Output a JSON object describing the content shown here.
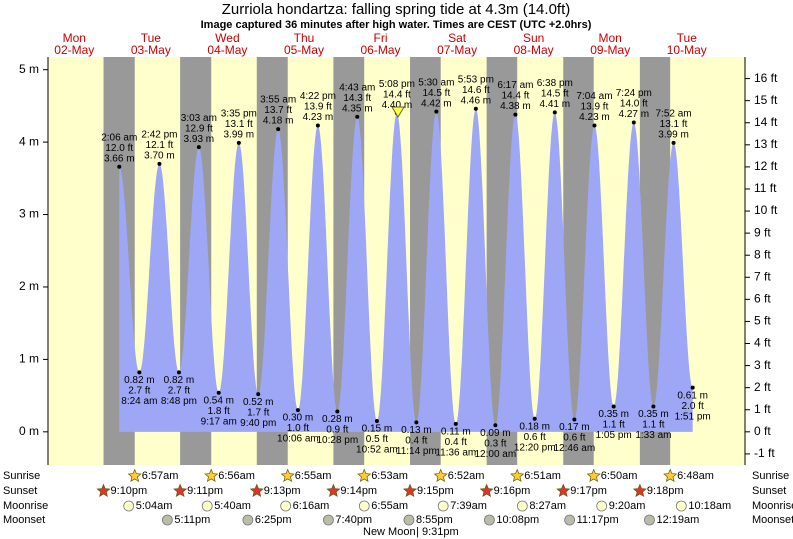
{
  "chart_data": {
    "type": "tide",
    "title": "Zurriola hondartza: falling  spring tide at 4.3m (14.0ft)",
    "subtitle": "Image captured 36 minutes after high water. Times are CEST (UTC +2.0hrs)",
    "ylim": [
      -0.458,
      5.175
    ],
    "yticks": [
      {
        "value": 0,
        "label": "0 m"
      },
      {
        "value": 1,
        "label": "1 m"
      },
      {
        "value": 2,
        "label": "2 m"
      },
      {
        "value": 3,
        "label": "3 m"
      },
      {
        "value": 4,
        "label": "4 m"
      },
      {
        "value": 5,
        "label": "5 m"
      }
    ],
    "y2lim": [
      -1.503,
      16.978
    ],
    "y2ticks": [
      {
        "value": -1,
        "label": "-1 ft"
      },
      {
        "value": 0,
        "label": "0 ft"
      },
      {
        "value": 1,
        "label": "1 ft"
      },
      {
        "value": 2,
        "label": "2 ft"
      },
      {
        "value": 3,
        "label": "3 ft"
      },
      {
        "value": 4,
        "label": "4 ft"
      },
      {
        "value": 5,
        "label": "5 ft"
      },
      {
        "value": 6,
        "label": "6 ft"
      },
      {
        "value": 7,
        "label": "7 ft"
      },
      {
        "value": 8,
        "label": "8 ft"
      },
      {
        "value": 9,
        "label": "9 ft"
      },
      {
        "value": 10,
        "label": "10 ft"
      },
      {
        "value": 11,
        "label": "11 ft"
      },
      {
        "value": 12,
        "label": "12 ft"
      },
      {
        "value": 13,
        "label": "13 ft"
      },
      {
        "value": 14,
        "label": "14 ft"
      },
      {
        "value": 15,
        "label": "15 ft"
      },
      {
        "value": 16,
        "label": "16 ft"
      }
    ],
    "row_labels": [
      "Sunrise",
      "Sunset",
      "Moonrise",
      "Moonset"
    ],
    "moon_phase": {
      "label": "New Moon",
      "time": "9:31pm"
    },
    "days": [
      {
        "name": "Mon",
        "date": "02-May",
        "tides": [],
        "sunset": "9:10pm"
      },
      {
        "name": "Tue",
        "date": "03-May",
        "tides": [
          {
            "time": "2:06 am",
            "height": 3.66,
            "height_label": "3.66 m",
            "feet_label": "12.0 ft"
          },
          {
            "time": "8:24 am",
            "height": 0.82,
            "height_label": "0.82 m",
            "feet_label": "2.7 ft"
          },
          {
            "time": "2:42 pm",
            "height": 3.7,
            "height_label": "3.70 m",
            "feet_label": "12.1 ft"
          },
          {
            "time": "8:48 pm",
            "height": 0.82,
            "height_label": "0.82 m",
            "feet_label": "2.7 ft"
          }
        ],
        "sunrise": "6:57am",
        "sunset": "9:11pm",
        "moonrise": "5:04am",
        "moonset": "5:11pm"
      },
      {
        "name": "Wed",
        "date": "04-May",
        "tides": [
          {
            "time": "3:03 am",
            "height": 3.93,
            "height_label": "3.93 m",
            "feet_label": "12.9 ft"
          },
          {
            "time": "9:17 am",
            "height": 0.54,
            "height_label": "0.54 m",
            "feet_label": "1.8 ft"
          },
          {
            "time": "3:35 pm",
            "height": 3.99,
            "height_label": "3.99 m",
            "feet_label": "13.1 ft"
          },
          {
            "time": "9:40 pm",
            "height": 0.52,
            "height_label": "0.52 m",
            "feet_label": "1.7 ft"
          }
        ],
        "sunrise": "6:56am",
        "sunset": "9:13pm",
        "moonrise": "5:40am",
        "moonset": "6:25pm"
      },
      {
        "name": "Thu",
        "date": "05-May",
        "tides": [
          {
            "time": "3:55 am",
            "height": 4.18,
            "height_label": "4.18 m",
            "feet_label": "13.7 ft"
          },
          {
            "time": "10:06 am",
            "height": 0.3,
            "height_label": "0.30 m",
            "feet_label": "1.0 ft"
          },
          {
            "time": "4:22 pm",
            "height": 4.23,
            "height_label": "4.23 m",
            "feet_label": "13.9 ft"
          },
          {
            "time": "10:28 pm",
            "height": 0.28,
            "height_label": "0.28 m",
            "feet_label": "0.9 ft"
          }
        ],
        "sunrise": "6:55am",
        "sunset": "9:14pm",
        "moonrise": "6:16am",
        "moonset": "7:40pm"
      },
      {
        "name": "Fri",
        "date": "06-May",
        "tides": [
          {
            "time": "4:43 am",
            "height": 4.35,
            "height_label": "4.35 m",
            "feet_label": "14.3 ft"
          },
          {
            "time": "10:52 am",
            "height": 0.15,
            "height_label": "0.15 m",
            "feet_label": "0.5 ft"
          },
          {
            "time": "5:08 pm",
            "height": 4.4,
            "height_label": "4.40 m",
            "feet_label": "14.4 ft"
          },
          {
            "time": "11:14 pm",
            "height": 0.13,
            "height_label": "0.13 m",
            "feet_label": "0.4 ft"
          }
        ],
        "sunrise": "6:53am",
        "sunset": "9:15pm",
        "moonrise": "6:55am",
        "moonset": "8:55pm"
      },
      {
        "name": "Sat",
        "date": "07-May",
        "tides": [
          {
            "time": "5:30 am",
            "height": 4.42,
            "height_label": "4.42 m",
            "feet_label": "14.5 ft"
          },
          {
            "time": "11:36 am",
            "height": 0.11,
            "height_label": "0.11 m",
            "feet_label": "0.4 ft"
          },
          {
            "time": "5:53 pm",
            "height": 4.46,
            "height_label": "4.46 m",
            "feet_label": "14.6 ft"
          }
        ],
        "sunrise": "6:52am",
        "sunset": "9:16pm",
        "moonrise": "7:39am",
        "moonset": "10:08pm"
      },
      {
        "name": "Sun",
        "date": "08-May",
        "tides": [
          {
            "time": "12:00 am",
            "height": 0.09,
            "height_label": "0.09 m",
            "feet_label": "0.3 ft"
          },
          {
            "time": "6:17 am",
            "height": 4.38,
            "height_label": "4.38 m",
            "feet_label": "14.4 ft"
          },
          {
            "time": "12:20 pm",
            "height": 0.18,
            "height_label": "0.18 m",
            "feet_label": "0.6 ft"
          },
          {
            "time": "6:38 pm",
            "height": 4.41,
            "height_label": "4.41 m",
            "feet_label": "14.5 ft"
          }
        ],
        "sunrise": "6:51am",
        "sunset": "9:17pm",
        "moonrise": "8:27am",
        "moonset": "11:17pm"
      },
      {
        "name": "Mon",
        "date": "09-May",
        "tides": [
          {
            "time": "12:46 am",
            "height": 0.17,
            "height_label": "0.17 m",
            "feet_label": "0.6 ft"
          },
          {
            "time": "7:04 am",
            "height": 4.23,
            "height_label": "4.23 m",
            "feet_label": "13.9 ft"
          },
          {
            "time": "1:05 pm",
            "height": 0.35,
            "height_label": "0.35 m",
            "feet_label": "1.1 ft"
          },
          {
            "time": "7:24 pm",
            "height": 4.27,
            "height_label": "4.27 m",
            "feet_label": "14.0 ft"
          }
        ],
        "sunrise": "6:50am",
        "sunset": "9:18pm",
        "moonrise": "9:20am"
      },
      {
        "name": "Tue",
        "date": "10-May",
        "tides": [
          {
            "time": "1:33 am",
            "height": 0.35,
            "height_label": "0.35 m",
            "feet_label": "1.1 ft"
          },
          {
            "time": "7:52 am",
            "height": 3.99,
            "height_label": "3.99 m",
            "feet_label": "13.1 ft"
          },
          {
            "time": "1:51 pm",
            "height": 0.61,
            "height_label": "0.61 m",
            "feet_label": "2.0 ft"
          }
        ],
        "sunrise": "6:48am",
        "moonrise": "10:18am",
        "moonset": "12:19am"
      }
    ]
  }
}
